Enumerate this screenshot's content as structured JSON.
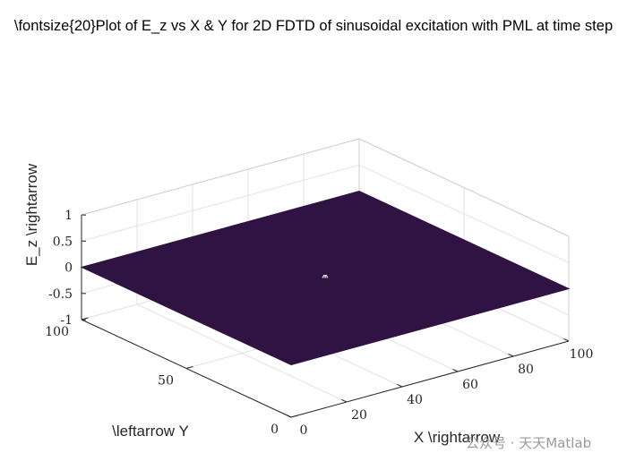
{
  "chart_data": {
    "type": "surface",
    "title": "\\fontsize{20}Plot of E_z vs X & Y for 2D FDTD of sinusoidal excitation with PML at time step",
    "xlabel": "X \\rightarrow",
    "ylabel": "\\leftarrow Y",
    "zlabel": "E_z \\rightarrow",
    "xlim": [
      0,
      100
    ],
    "ylim": [
      0,
      100
    ],
    "zlim": [
      -1,
      1
    ],
    "x_ticks": [
      0,
      20,
      40,
      60,
      80,
      100
    ],
    "y_ticks": [
      0,
      50,
      100
    ],
    "z_ticks": [
      -1,
      -0.5,
      0,
      0.5,
      1
    ],
    "x_tick_labels": [
      "0",
      "20",
      "40",
      "60",
      "80",
      "100"
    ],
    "y_tick_labels": [
      "0",
      "50",
      "100"
    ],
    "z_tick_labels": [
      "-1",
      "-0.5",
      "0",
      "0.5",
      "1"
    ],
    "surface_level": 0,
    "surface_color": "#2f1342",
    "source_peak": {
      "x": 50,
      "y": 50,
      "z": 0.06
    },
    "grid": true,
    "box": true
  },
  "watermark": "公众号 · 天天Matlab"
}
